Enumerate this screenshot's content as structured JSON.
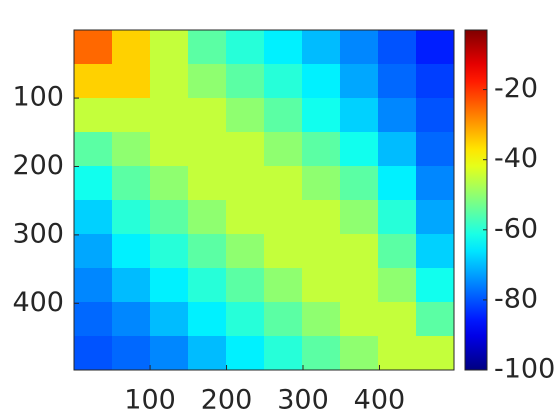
{
  "chart_data": {
    "type": "heatmap",
    "z": [
      [
        -25,
        -35,
        -45,
        -55,
        -60,
        -65,
        -70,
        -75,
        -80,
        -85
      ],
      [
        -35,
        -35,
        -45,
        -50,
        -55,
        -60,
        -65,
        -72,
        -78,
        -82
      ],
      [
        -45,
        -45,
        -45,
        -45,
        -50,
        -55,
        -62,
        -68,
        -75,
        -80
      ],
      [
        -55,
        -50,
        -45,
        -45,
        -45,
        -50,
        -55,
        -62,
        -70,
        -78
      ],
      [
        -62,
        -55,
        -50,
        -45,
        -45,
        -45,
        -50,
        -55,
        -65,
        -75
      ],
      [
        -68,
        -60,
        -55,
        -50,
        -45,
        -45,
        -45,
        -50,
        -60,
        -72
      ],
      [
        -72,
        -65,
        -60,
        -55,
        -50,
        -45,
        -45,
        -45,
        -55,
        -68
      ],
      [
        -75,
        -70,
        -65,
        -60,
        -55,
        -50,
        -45,
        -45,
        -50,
        -62
      ],
      [
        -78,
        -75,
        -70,
        -65,
        -60,
        -55,
        -50,
        -45,
        -45,
        -55
      ],
      [
        -80,
        -78,
        -75,
        -70,
        -65,
        -60,
        -55,
        -50,
        -45,
        -45
      ]
    ],
    "xlim": [
      0.5,
      497.5
    ],
    "ylim": [
      0.5,
      497.5
    ],
    "xticks": [
      100,
      200,
      300,
      400
    ],
    "yticks": [
      100,
      200,
      300,
      400
    ],
    "y_reversed": true,
    "colormap": "jet",
    "clim": [
      -100,
      -3
    ],
    "colorbar_ticks": [
      -100,
      -80,
      -60,
      -40,
      -20
    ]
  }
}
